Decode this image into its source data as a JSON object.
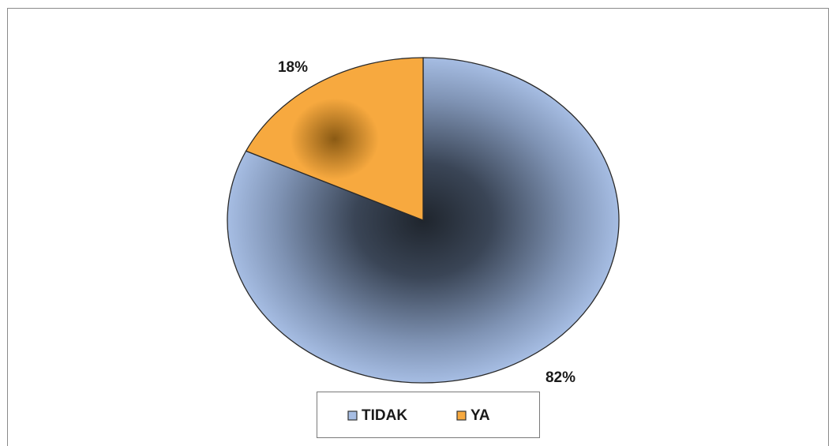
{
  "chart_data": {
    "type": "pie",
    "title": "",
    "slices": [
      {
        "label": "TIDAK",
        "value": 82,
        "display": "82%",
        "color": "#a6bde3"
      },
      {
        "label": "YA",
        "value": 18,
        "display": "18%",
        "color": "#f7a93f"
      }
    ],
    "legend": {
      "placement": "bottom",
      "items": [
        "TIDAK",
        "YA"
      ]
    }
  }
}
